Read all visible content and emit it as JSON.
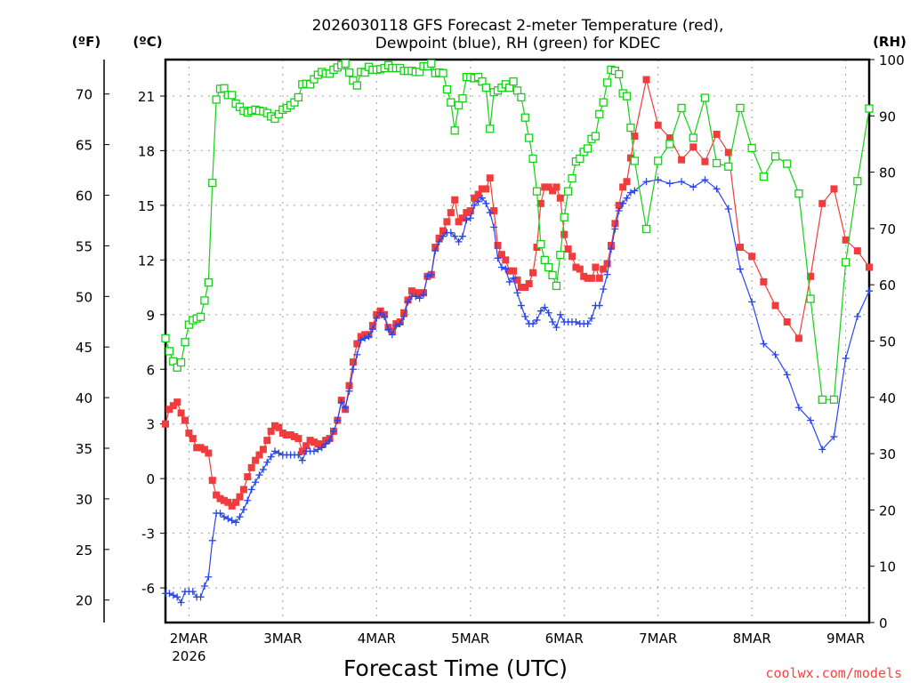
{
  "chart_data": {
    "type": "line",
    "title_line1": "2026030118 GFS Forecast 2-meter Temperature (red),",
    "title_line2": "Dewpoint (blue), RH (green) for KDEC",
    "xlabel": "Forecast Time (UTC)",
    "left_axis_f_label": "(ºF)",
    "left_axis_c_label": "(ºC)",
    "right_axis_label": "(RH)",
    "credit": "coolwx.com/models",
    "x_start": "2026-03-01 18Z",
    "x_range_hours": [
      0,
      180
    ],
    "x_ticks": [
      {
        "hour": 6,
        "label": "2MAR",
        "sublabel": "2026"
      },
      {
        "hour": 30,
        "label": "3MAR"
      },
      {
        "hour": 54,
        "label": "4MAR"
      },
      {
        "hour": 78,
        "label": "5MAR"
      },
      {
        "hour": 102,
        "label": "6MAR"
      },
      {
        "hour": 126,
        "label": "7MAR"
      },
      {
        "hour": 150,
        "label": "8MAR"
      },
      {
        "hour": 174,
        "label": "9MAR"
      }
    ],
    "c_range": [
      -7.9,
      23
    ],
    "c_ticks": [
      "-6",
      "-3",
      "0",
      "3",
      "6",
      "9",
      "12",
      "15",
      "18",
      "21"
    ],
    "f_ticks": [
      "20",
      "25",
      "30",
      "35",
      "40",
      "45",
      "50",
      "55",
      "60",
      "65",
      "70"
    ],
    "rh_range": [
      0,
      100
    ],
    "rh_ticks": [
      "0",
      "10",
      "20",
      "30",
      "40",
      "50",
      "60",
      "70",
      "80",
      "90",
      "100"
    ],
    "grid": true,
    "colors": {
      "temperature": "#f03c3c",
      "dewpoint": "#2846f0",
      "rh": "#14d214",
      "grid": "#a0a0a0",
      "credit": "#ff4040"
    },
    "hours": [
      0,
      1,
      2,
      3,
      4,
      5,
      6,
      7,
      8,
      9,
      10,
      11,
      12,
      13,
      14,
      15,
      16,
      17,
      18,
      19,
      20,
      21,
      22,
      23,
      24,
      25,
      26,
      27,
      28,
      29,
      30,
      31,
      32,
      33,
      34,
      35,
      36,
      37,
      38,
      39,
      40,
      41,
      42,
      43,
      44,
      45,
      46,
      47,
      48,
      49,
      50,
      51,
      52,
      53,
      54,
      55,
      56,
      57,
      58,
      59,
      60,
      61,
      62,
      63,
      64,
      65,
      66,
      67,
      68,
      69,
      70,
      71,
      72,
      73,
      74,
      75,
      76,
      77,
      78,
      79,
      80,
      81,
      82,
      83,
      84,
      85,
      86,
      87,
      88,
      89,
      90,
      91,
      92,
      93,
      94,
      95,
      96,
      97,
      98,
      99,
      100,
      101,
      102,
      103,
      104,
      105,
      106,
      107,
      108,
      109,
      110,
      111,
      112,
      113,
      114,
      115,
      116,
      117,
      118,
      119,
      120,
      123,
      126,
      129,
      132,
      135,
      138,
      141,
      144,
      147,
      150,
      153,
      156,
      159,
      162,
      165,
      168,
      171,
      174,
      177,
      180
    ],
    "series": [
      {
        "name": "Temperature (C)",
        "axis": "c",
        "marker": "filled-square",
        "values": [
          3.0,
          3.8,
          4.0,
          4.2,
          3.6,
          3.2,
          2.5,
          2.2,
          1.7,
          1.7,
          1.6,
          1.4,
          -0.1,
          -0.9,
          -1.1,
          -1.2,
          -1.3,
          -1.5,
          -1.3,
          -1.0,
          -0.6,
          0.1,
          0.6,
          1.0,
          1.3,
          1.6,
          2.1,
          2.6,
          2.9,
          2.8,
          2.5,
          2.4,
          2.4,
          2.3,
          2.2,
          1.5,
          1.8,
          2.1,
          2.0,
          1.9,
          1.9,
          2.1,
          2.2,
          2.6,
          3.2,
          4.3,
          3.8,
          5.1,
          6.4,
          7.4,
          7.8,
          7.9,
          7.9,
          8.4,
          9.0,
          9.2,
          9.0,
          8.3,
          8.1,
          8.5,
          8.6,
          9.1,
          9.8,
          10.3,
          10.2,
          10.2,
          10.2,
          11.1,
          11.2,
          12.7,
          13.2,
          13.6,
          14.1,
          14.6,
          15.3,
          14.1,
          14.3,
          14.6,
          14.7,
          15.4,
          15.6,
          15.9,
          15.9,
          16.5,
          14.7,
          12.8,
          12.3,
          12.0,
          11.4,
          11.4,
          10.9,
          10.5,
          10.5,
          10.7,
          11.3,
          12.7,
          15.1,
          16.0,
          16.0,
          15.8,
          16.0,
          15.4,
          13.4,
          12.6,
          12.2,
          11.6,
          11.5,
          11.1,
          11.0,
          11.0,
          11.6,
          11.0,
          11.5,
          11.8,
          12.8,
          14.0,
          15.0,
          16.0,
          16.3,
          17.6,
          18.8,
          21.9,
          19.4,
          18.7,
          17.5,
          18.2,
          17.4,
          18.9,
          17.9,
          12.7,
          12.2,
          10.8,
          9.5,
          8.6,
          7.7,
          11.1,
          15.1,
          15.9,
          13.1,
          12.5,
          11.6
        ]
      },
      {
        "name": "Dewpoint (C)",
        "axis": "c",
        "marker": "plus",
        "values": [
          -6.3,
          -6.3,
          -6.4,
          -6.5,
          -6.8,
          -6.2,
          -6.2,
          -6.2,
          -6.5,
          -6.5,
          -5.9,
          -5.4,
          -3.4,
          -1.9,
          -1.9,
          -2.1,
          -2.2,
          -2.3,
          -2.4,
          -2.1,
          -1.7,
          -1.2,
          -0.6,
          -0.2,
          0.2,
          0.5,
          0.9,
          1.2,
          1.5,
          1.4,
          1.3,
          1.3,
          1.3,
          1.3,
          1.3,
          1.0,
          1.5,
          1.5,
          1.5,
          1.6,
          1.7,
          1.9,
          2.1,
          2.6,
          3.2,
          4.2,
          3.9,
          4.8,
          6.0,
          6.8,
          7.6,
          7.7,
          7.8,
          8.2,
          8.8,
          9.1,
          8.9,
          8.2,
          7.9,
          8.4,
          8.5,
          8.9,
          9.7,
          10.0,
          10.0,
          9.9,
          10.1,
          11.1,
          11.2,
          12.5,
          13.0,
          13.3,
          13.5,
          13.5,
          13.3,
          13.0,
          13.3,
          14.2,
          14.3,
          15.0,
          15.2,
          15.4,
          15.1,
          14.6,
          13.8,
          12.1,
          11.6,
          11.5,
          10.8,
          11.0,
          10.2,
          9.5,
          8.9,
          8.5,
          8.5,
          8.7,
          9.2,
          9.4,
          9.1,
          8.6,
          8.3,
          9.0,
          8.6,
          8.6,
          8.6,
          8.6,
          8.5,
          8.5,
          8.5,
          8.8,
          9.5,
          9.5,
          10.4,
          11.2,
          12.6,
          13.7,
          14.7,
          15.1,
          15.4,
          15.7,
          15.8,
          16.3,
          16.4,
          16.2,
          16.3,
          16.0,
          16.4,
          15.9,
          14.8,
          11.5,
          9.7,
          7.4,
          6.8,
          5.7,
          3.9,
          3.2,
          1.6,
          2.3,
          6.6,
          8.9,
          10.3
        ]
      },
      {
        "name": "RH (%)",
        "axis": "rh",
        "marker": "open-square",
        "values": [
          50.5,
          48.2,
          46.4,
          45.3,
          46.2,
          49.8,
          52.9,
          53.7,
          54.0,
          54.3,
          57.2,
          60.4,
          78.1,
          92.9,
          94.8,
          94.9,
          93.7,
          93.7,
          92.2,
          91.6,
          90.9,
          90.6,
          90.9,
          91.1,
          90.9,
          90.8,
          90.5,
          89.9,
          89.5,
          90.3,
          91.1,
          91.4,
          91.9,
          92.4,
          93.3,
          95.6,
          95.7,
          95.6,
          96.5,
          97.3,
          97.8,
          97.5,
          97.5,
          98.2,
          98.6,
          99.0,
          99.3,
          97.7,
          96.3,
          95.4,
          97.8,
          97.7,
          98.7,
          98.2,
          98.2,
          98.3,
          98.5,
          99.0,
          98.5,
          98.5,
          98.5,
          98.0,
          98.0,
          98.0,
          97.8,
          97.8,
          98.8,
          98.8,
          99.3,
          97.6,
          97.7,
          97.6,
          94.7,
          92.4,
          87.4,
          91.9,
          93.1,
          96.9,
          96.9,
          96.7,
          96.9,
          96.1,
          95.0,
          87.7,
          94.2,
          94.5,
          95.0,
          95.6,
          95.0,
          96.1,
          94.5,
          93.3,
          89.7,
          86.1,
          82.4,
          76.6,
          67.2,
          64.4,
          63.1,
          61.7,
          59.8,
          65.3,
          72.0,
          76.6,
          78.9,
          81.9,
          82.4,
          83.6,
          84.2,
          85.9,
          86.4,
          90.3,
          92.4,
          95.9,
          98.2,
          98.0,
          97.4,
          94.0,
          93.5,
          87.9,
          82.0,
          69.9,
          82.0,
          85.0,
          91.4,
          86.1,
          93.2,
          81.6,
          81.0,
          91.4,
          84.3,
          79.2,
          82.8,
          81.5,
          76.2,
          57.5,
          39.6,
          39.6,
          64.0,
          78.4,
          91.3
        ]
      }
    ]
  }
}
